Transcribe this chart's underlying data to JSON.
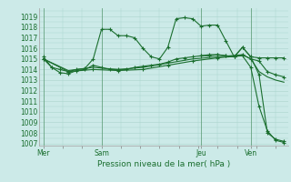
{
  "bg_color": "#cceae8",
  "grid_color": "#aad4cc",
  "line_color": "#1a6e2e",
  "title": "Pression niveau de la mer( hPa )",
  "ylim": [
    1006.8,
    1019.8
  ],
  "yticks": [
    1007,
    1008,
    1009,
    1010,
    1011,
    1012,
    1013,
    1014,
    1015,
    1016,
    1017,
    1018,
    1019
  ],
  "day_labels": [
    "Mer",
    "Sam",
    "Jeu",
    "Ven"
  ],
  "day_positions": [
    0,
    7,
    19,
    25
  ],
  "xlim": [
    -0.5,
    29.5
  ],
  "line1_x": [
    0,
    1,
    2,
    3,
    4,
    5,
    6,
    7,
    8,
    9,
    10,
    11,
    12,
    13,
    14,
    15,
    16,
    17,
    18,
    19,
    20,
    21,
    22,
    23,
    24,
    25,
    26,
    27,
    28,
    29
  ],
  "line1_y": [
    1015.2,
    1014.2,
    1014.0,
    1013.8,
    1014.0,
    1014.1,
    1015.0,
    1017.8,
    1017.8,
    1017.2,
    1017.2,
    1017.0,
    1016.0,
    1015.2,
    1015.0,
    1016.1,
    1018.8,
    1018.9,
    1018.8,
    1018.1,
    1018.2,
    1018.2,
    1016.7,
    1015.2,
    1016.1,
    1015.2,
    1015.1,
    1015.1,
    1015.1,
    1015.1
  ],
  "line2_x": [
    0,
    1,
    2,
    3,
    4,
    5,
    6,
    7,
    8,
    9,
    10,
    11,
    12,
    13,
    14,
    15,
    16,
    17,
    18,
    19,
    20,
    21,
    22,
    23,
    24,
    25,
    26,
    27,
    28,
    29
  ],
  "line2_y": [
    1015.0,
    1014.2,
    1013.7,
    1013.6,
    1013.9,
    1014.0,
    1014.4,
    1014.2,
    1014.0,
    1014.0,
    1014.0,
    1014.2,
    1014.3,
    1014.4,
    1014.5,
    1014.7,
    1015.0,
    1015.1,
    1015.2,
    1015.3,
    1015.3,
    1015.4,
    1015.3,
    1015.2,
    1015.4,
    1015.0,
    1014.8,
    1013.8,
    1013.5,
    1013.3
  ],
  "line3_x": [
    0,
    3,
    6,
    9,
    12,
    15,
    18,
    21,
    24,
    25,
    26,
    27,
    28,
    29
  ],
  "line3_y": [
    1015.0,
    1013.9,
    1014.2,
    1014.0,
    1014.2,
    1014.6,
    1015.0,
    1015.2,
    1015.4,
    1015.0,
    1013.8,
    1013.3,
    1013.0,
    1012.8
  ],
  "line4_x": [
    0,
    3,
    6,
    9,
    12,
    15,
    18,
    21,
    24,
    25,
    26,
    27,
    28,
    29
  ],
  "line4_y": [
    1015.0,
    1013.8,
    1014.0,
    1013.9,
    1014.0,
    1014.4,
    1014.8,
    1015.1,
    1015.3,
    1014.2,
    1010.5,
    1008.2,
    1007.3,
    1007.1
  ],
  "line5_x": [
    19,
    20,
    21,
    22,
    23,
    24,
    25,
    26,
    27,
    28,
    29
  ],
  "line5_y": [
    1015.3,
    1015.4,
    1015.4,
    1015.3,
    1015.2,
    1016.1,
    1015.2,
    1013.5,
    1008.0,
    1007.4,
    1007.2
  ]
}
